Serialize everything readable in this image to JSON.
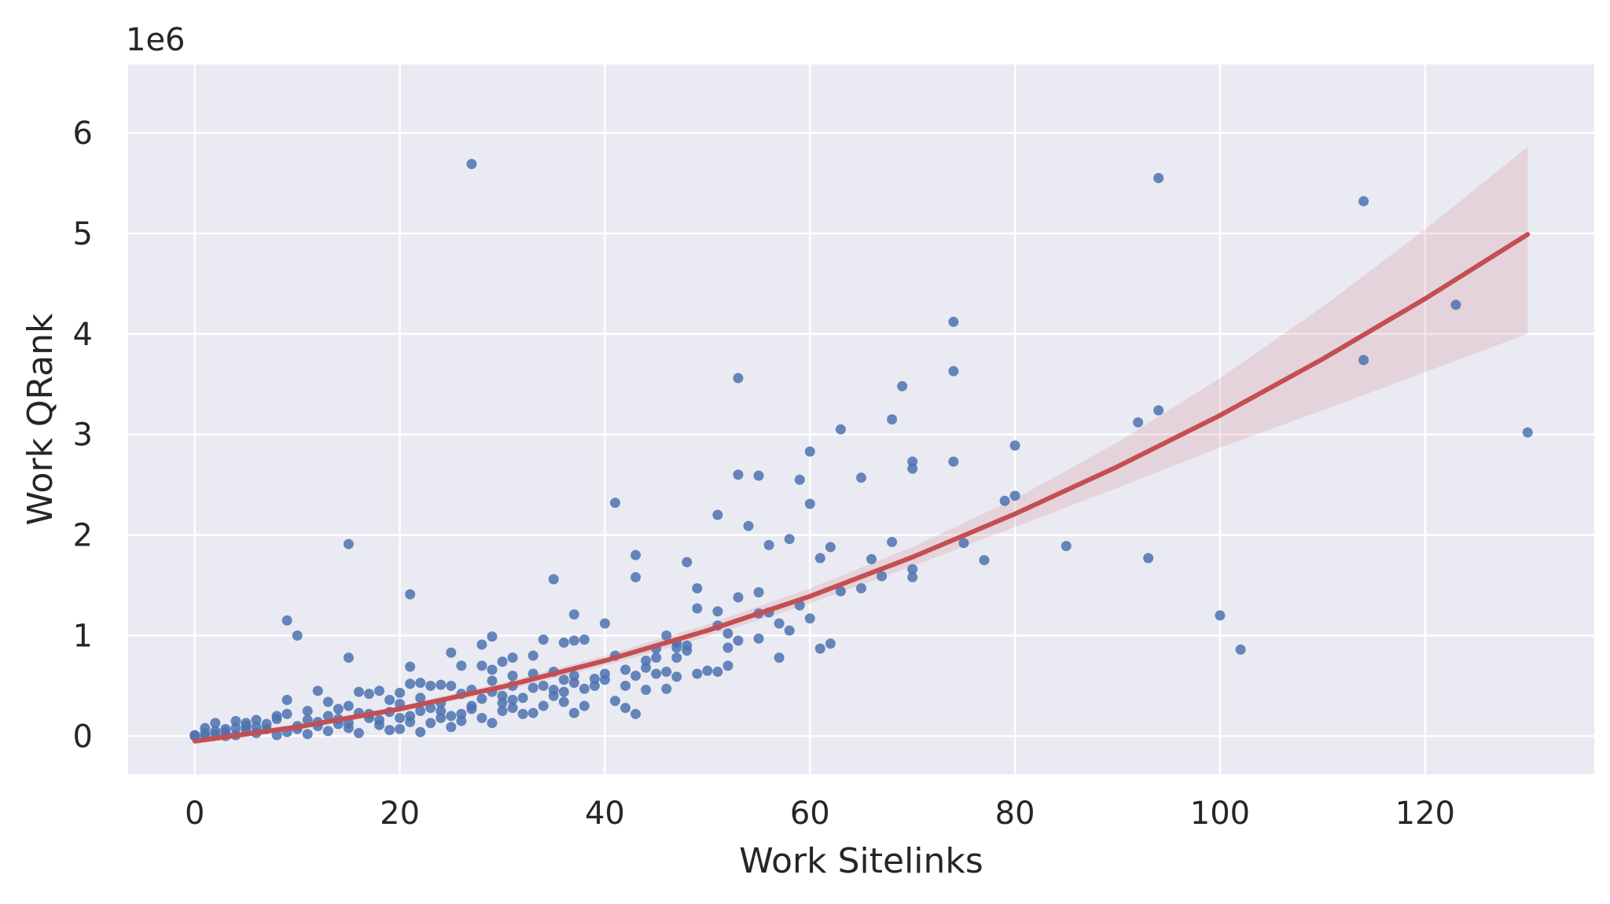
{
  "chart_data": {
    "type": "scatter",
    "title": "",
    "xlabel": "Work Sitelinks",
    "ylabel": "Work QRank",
    "y_offset_label": "1e6",
    "xlim": [
      -6.5,
      136.5
    ],
    "ylim": [
      -0.38,
      6.68
    ],
    "x_ticks": [
      0,
      20,
      40,
      60,
      80,
      100,
      120
    ],
    "y_ticks": [
      0,
      1,
      2,
      3,
      4,
      5,
      6
    ],
    "grid": true,
    "colors": {
      "background": "#eaeaf2",
      "grid": "#ffffff",
      "points": "#4c72b0",
      "fit_line": "#c44e52",
      "fit_band": "#c44e52"
    },
    "series": [
      {
        "kind": "scatter",
        "points": [
          [
            27,
            5.69
          ],
          [
            94,
            5.55
          ],
          [
            114,
            5.32
          ],
          [
            123,
            4.29
          ],
          [
            114,
            3.74
          ],
          [
            130,
            3.02
          ],
          [
            74,
            4.12
          ],
          [
            74,
            3.63
          ],
          [
            53,
            3.56
          ],
          [
            69,
            3.48
          ],
          [
            68,
            3.15
          ],
          [
            63,
            3.05
          ],
          [
            92,
            3.12
          ],
          [
            94,
            3.24
          ],
          [
            80,
            2.89
          ],
          [
            60,
            2.83
          ],
          [
            70,
            2.73
          ],
          [
            74,
            2.73
          ],
          [
            70,
            2.66
          ],
          [
            53,
            2.6
          ],
          [
            55,
            2.59
          ],
          [
            65,
            2.57
          ],
          [
            59,
            2.55
          ],
          [
            80,
            2.39
          ],
          [
            79,
            2.34
          ],
          [
            41,
            2.32
          ],
          [
            60,
            2.31
          ],
          [
            51,
            2.2
          ],
          [
            54,
            2.09
          ],
          [
            58,
            1.96
          ],
          [
            75,
            1.92
          ],
          [
            68,
            1.93
          ],
          [
            56,
            1.9
          ],
          [
            62,
            1.88
          ],
          [
            85,
            1.89
          ],
          [
            15,
            1.91
          ],
          [
            43,
            1.8
          ],
          [
            61,
            1.77
          ],
          [
            66,
            1.76
          ],
          [
            93,
            1.77
          ],
          [
            77,
            1.75
          ],
          [
            48,
            1.73
          ],
          [
            70,
            1.66
          ],
          [
            67,
            1.59
          ],
          [
            70,
            1.58
          ],
          [
            43,
            1.58
          ],
          [
            35,
            1.56
          ],
          [
            65,
            1.47
          ],
          [
            63,
            1.44
          ],
          [
            49,
            1.47
          ],
          [
            55,
            1.43
          ],
          [
            21,
            1.41
          ],
          [
            53,
            1.38
          ],
          [
            59,
            1.3
          ],
          [
            49,
            1.27
          ],
          [
            51,
            1.24
          ],
          [
            37,
            1.21
          ],
          [
            100,
            1.2
          ],
          [
            55,
            1.22
          ],
          [
            56,
            1.23
          ],
          [
            60,
            1.17
          ],
          [
            9,
            1.15
          ],
          [
            57,
            1.12
          ],
          [
            40,
            1.12
          ],
          [
            58,
            1.05
          ],
          [
            51,
            1.1
          ],
          [
            52,
            1.02
          ],
          [
            10,
            1.0
          ],
          [
            29,
            0.99
          ],
          [
            46,
            1.0
          ],
          [
            55,
            0.97
          ],
          [
            53,
            0.95
          ],
          [
            34,
            0.96
          ],
          [
            38,
            0.96
          ],
          [
            36,
            0.93
          ],
          [
            37,
            0.95
          ],
          [
            28,
            0.91
          ],
          [
            62,
            0.92
          ],
          [
            61,
            0.87
          ],
          [
            102,
            0.86
          ],
          [
            48,
            0.9
          ],
          [
            47,
            0.88
          ],
          [
            52,
            0.88
          ],
          [
            45,
            0.87
          ],
          [
            25,
            0.83
          ],
          [
            15,
            0.78
          ],
          [
            31,
            0.78
          ],
          [
            33,
            0.8
          ],
          [
            41,
            0.8
          ],
          [
            57,
            0.78
          ],
          [
            47,
            0.78
          ],
          [
            28,
            0.7
          ],
          [
            26,
            0.7
          ],
          [
            30,
            0.74
          ],
          [
            44,
            0.75
          ],
          [
            45,
            0.78
          ],
          [
            21,
            0.69
          ],
          [
            50,
            0.65
          ],
          [
            51,
            0.64
          ],
          [
            52,
            0.7
          ],
          [
            46,
            0.64
          ],
          [
            42,
            0.66
          ],
          [
            29,
            0.66
          ],
          [
            35,
            0.64
          ],
          [
            43,
            0.6
          ],
          [
            31,
            0.6
          ],
          [
            37,
            0.6
          ],
          [
            39,
            0.57
          ],
          [
            49,
            0.62
          ],
          [
            47,
            0.59
          ],
          [
            40,
            0.56
          ],
          [
            36,
            0.56
          ],
          [
            22,
            0.53
          ],
          [
            21,
            0.52
          ],
          [
            24,
            0.51
          ],
          [
            25,
            0.5
          ],
          [
            23,
            0.5
          ],
          [
            42,
            0.5
          ],
          [
            46,
            0.47
          ],
          [
            33,
            0.48
          ],
          [
            38,
            0.47
          ],
          [
            44,
            0.46
          ],
          [
            16,
            0.44
          ],
          [
            12,
            0.45
          ],
          [
            18,
            0.45
          ],
          [
            20,
            0.43
          ],
          [
            17,
            0.42
          ],
          [
            29,
            0.44
          ],
          [
            26,
            0.42
          ],
          [
            30,
            0.4
          ],
          [
            35,
            0.4
          ],
          [
            41,
            0.35
          ],
          [
            31,
            0.36
          ],
          [
            36,
            0.34
          ],
          [
            28,
            0.37
          ],
          [
            24,
            0.33
          ],
          [
            19,
            0.36
          ],
          [
            13,
            0.34
          ],
          [
            9,
            0.36
          ],
          [
            15,
            0.3
          ],
          [
            34,
            0.3
          ],
          [
            42,
            0.28
          ],
          [
            38,
            0.3
          ],
          [
            33,
            0.23
          ],
          [
            37,
            0.23
          ],
          [
            43,
            0.22
          ],
          [
            27,
            0.27
          ],
          [
            22,
            0.25
          ],
          [
            30,
            0.25
          ],
          [
            17,
            0.22
          ],
          [
            11,
            0.25
          ],
          [
            25,
            0.2
          ],
          [
            20,
            0.18
          ],
          [
            14,
            0.17
          ],
          [
            8,
            0.2
          ],
          [
            6,
            0.16
          ],
          [
            4,
            0.15
          ],
          [
            2,
            0.13
          ],
          [
            12,
            0.14
          ],
          [
            23,
            0.13
          ],
          [
            29,
            0.13
          ],
          [
            18,
            0.11
          ],
          [
            10,
            0.1
          ],
          [
            5,
            0.1
          ],
          [
            1,
            0.08
          ],
          [
            3,
            0.07
          ],
          [
            7,
            0.07
          ],
          [
            15,
            0.08
          ],
          [
            20,
            0.07
          ],
          [
            25,
            0.09
          ],
          [
            13,
            0.05
          ],
          [
            9,
            0.04
          ],
          [
            6,
            0.03
          ],
          [
            2,
            0.02
          ],
          [
            4,
            0.01
          ],
          [
            0,
            0.01
          ],
          [
            1,
            0.0
          ],
          [
            3,
            0.0
          ],
          [
            8,
            0.01
          ],
          [
            11,
            0.02
          ],
          [
            16,
            0.03
          ],
          [
            22,
            0.04
          ],
          [
            19,
            0.06
          ],
          [
            14,
            0.12
          ],
          [
            26,
            0.15
          ],
          [
            32,
            0.22
          ],
          [
            21,
            0.2
          ],
          [
            24,
            0.25
          ],
          [
            27,
            0.3
          ],
          [
            31,
            0.28
          ],
          [
            28,
            0.18
          ],
          [
            23,
            0.28
          ],
          [
            19,
            0.24
          ],
          [
            17,
            0.18
          ],
          [
            13,
            0.2
          ],
          [
            11,
            0.16
          ],
          [
            7,
            0.12
          ],
          [
            5,
            0.06
          ],
          [
            3,
            0.04
          ],
          [
            1,
            0.03
          ],
          [
            0,
            0.0
          ],
          [
            2,
            0.05
          ],
          [
            6,
            0.09
          ],
          [
            10,
            0.07
          ],
          [
            12,
            0.1
          ],
          [
            15,
            0.13
          ],
          [
            18,
            0.16
          ],
          [
            21,
            0.14
          ],
          [
            24,
            0.18
          ],
          [
            26,
            0.22
          ],
          [
            30,
            0.33
          ],
          [
            32,
            0.38
          ],
          [
            35,
            0.46
          ],
          [
            37,
            0.53
          ],
          [
            39,
            0.5
          ],
          [
            40,
            0.62
          ],
          [
            44,
            0.68
          ],
          [
            45,
            0.62
          ],
          [
            47,
            0.93
          ],
          [
            48,
            0.85
          ],
          [
            34,
            0.5
          ],
          [
            36,
            0.44
          ],
          [
            27,
            0.46
          ],
          [
            29,
            0.55
          ],
          [
            31,
            0.5
          ],
          [
            33,
            0.62
          ],
          [
            20,
            0.32
          ],
          [
            22,
            0.38
          ],
          [
            14,
            0.27
          ],
          [
            16,
            0.23
          ],
          [
            8,
            0.17
          ],
          [
            9,
            0.22
          ],
          [
            5,
            0.13
          ],
          [
            4,
            0.08
          ]
        ]
      },
      {
        "kind": "fit_line",
        "x": [
          0,
          10,
          20,
          30,
          40,
          50,
          60,
          70,
          80,
          90,
          100,
          110,
          120,
          130
        ],
        "y": [
          -0.05,
          0.09,
          0.27,
          0.49,
          0.75,
          1.05,
          1.39,
          1.78,
          2.21,
          2.68,
          3.19,
          3.75,
          4.35,
          4.99
        ],
        "ci_lower": [
          -0.08,
          0.06,
          0.24,
          0.45,
          0.7,
          0.99,
          1.32,
          1.69,
          2.08,
          2.47,
          2.87,
          3.24,
          3.62,
          4.0
        ],
        "ci_upper": [
          -0.02,
          0.12,
          0.3,
          0.53,
          0.8,
          1.11,
          1.47,
          1.88,
          2.36,
          2.92,
          3.56,
          4.27,
          5.04,
          5.86
        ]
      }
    ]
  }
}
